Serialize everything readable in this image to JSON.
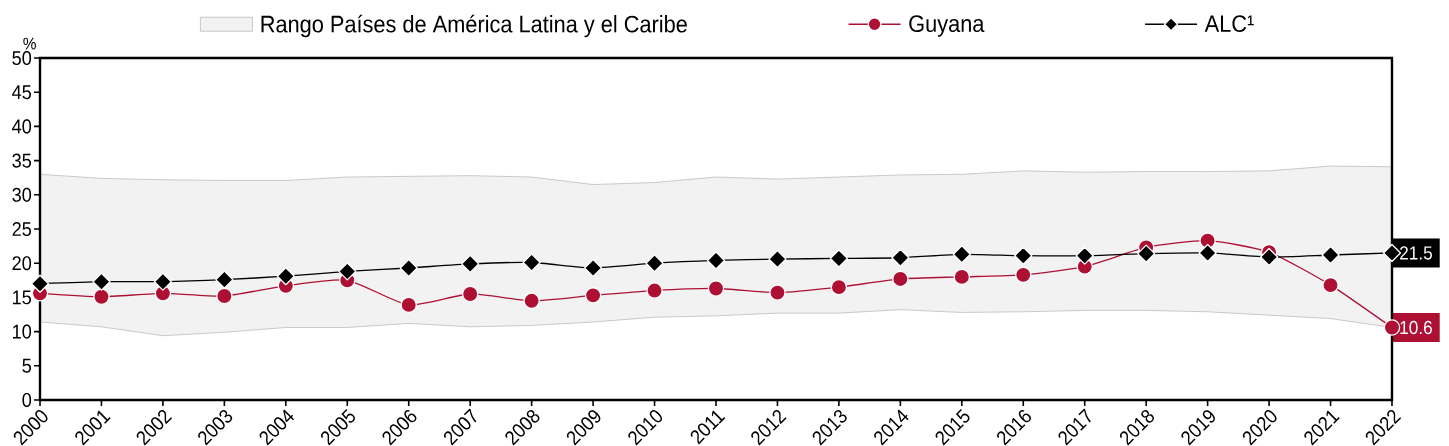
{
  "chart_data": {
    "type": "line",
    "ylabel": "%",
    "legend": "top",
    "categories": [
      "2000",
      "2001",
      "2002",
      "2003",
      "2004",
      "2005",
      "2006",
      "2007",
      "2008",
      "2009",
      "2010",
      "2011",
      "2012",
      "2013",
      "2014",
      "2015",
      "2016",
      "2017",
      "2018",
      "2019",
      "2020",
      "2021",
      "2022"
    ],
    "ylim": [
      0,
      50
    ],
    "yticks": [
      0,
      5,
      10,
      15,
      20,
      25,
      30,
      35,
      40,
      45,
      50
    ],
    "series": [
      {
        "name": "Rango Países de América Latina y el Caribe",
        "color": "#f2f2f2",
        "values": [
          null,
          null,
          null,
          null,
          null,
          null,
          null,
          null,
          null,
          null,
          null,
          null,
          null,
          null,
          null,
          null,
          null,
          null,
          null,
          null,
          null,
          null,
          null
        ],
        "upper": [
          33.0,
          32.4,
          32.2,
          32.1,
          32.1,
          32.6,
          32.7,
          32.8,
          32.6,
          31.5,
          31.8,
          32.6,
          32.3,
          32.6,
          32.9,
          33.0,
          33.5,
          33.3,
          33.4,
          33.4,
          33.5,
          34.2,
          34.1
        ],
        "lower": [
          11.4,
          10.7,
          9.4,
          9.9,
          10.6,
          10.6,
          11.2,
          10.7,
          10.9,
          11.4,
          12.1,
          12.3,
          12.7,
          12.7,
          13.2,
          12.8,
          12.9,
          13.1,
          13.1,
          12.9,
          12.4,
          11.9,
          10.6
        ]
      },
      {
        "name": "Guyana",
        "type": "line",
        "color": "#ae1034",
        "marker": "circle",
        "values": [
          15.6,
          15.1,
          15.6,
          15.2,
          16.7,
          17.5,
          13.9,
          15.5,
          14.5,
          15.3,
          16.0,
          16.3,
          15.7,
          16.5,
          17.7,
          18.0,
          18.3,
          19.5,
          22.3,
          23.3,
          21.6,
          16.8,
          10.6
        ],
        "value_labels": [
          null,
          null,
          null,
          null,
          null,
          null,
          null,
          null,
          null,
          null,
          null,
          null,
          null,
          null,
          null,
          null,
          null,
          null,
          null,
          null,
          null,
          null,
          "10.6"
        ]
      },
      {
        "name": "ALC¹",
        "type": "line",
        "color": "#000000",
        "marker": "diamond",
        "values": [
          17.0,
          17.3,
          17.3,
          17.6,
          18.1,
          18.8,
          19.3,
          19.9,
          20.1,
          19.3,
          20.0,
          20.4,
          20.6,
          20.7,
          20.8,
          21.3,
          21.1,
          21.1,
          21.4,
          21.5,
          20.9,
          21.2,
          21.5
        ],
        "value_labels": [
          null,
          null,
          null,
          null,
          null,
          null,
          null,
          null,
          null,
          null,
          null,
          null,
          null,
          null,
          null,
          null,
          null,
          null,
          null,
          null,
          null,
          null,
          "21.5"
        ]
      }
    ]
  }
}
